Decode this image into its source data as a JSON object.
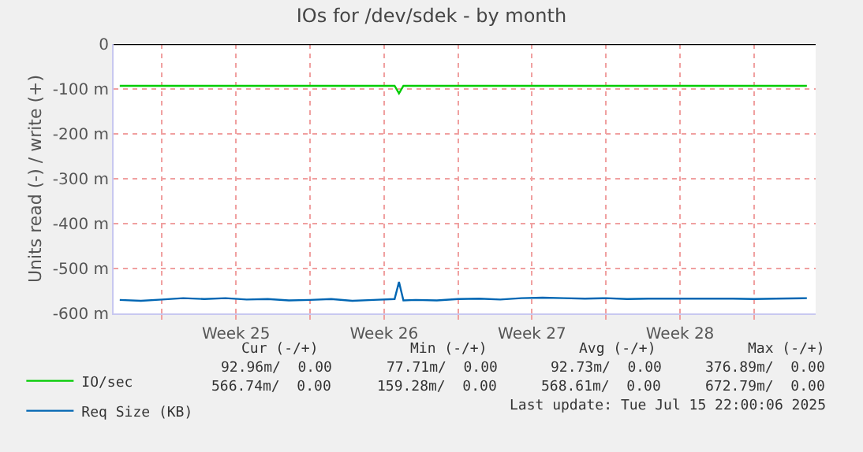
{
  "chart_data": {
    "type": "line",
    "title": "IOs for /dev/sdek - by month",
    "ylabel": "Units read (-) / write (+)",
    "x": [
      "2025-06-14",
      "2025-06-15",
      "2025-06-16",
      "2025-06-17",
      "2025-06-18",
      "2025-06-19",
      "2025-06-20",
      "2025-06-21",
      "2025-06-22",
      "2025-06-23",
      "2025-06-24",
      "2025-06-25",
      "2025-06-26",
      "2025-06-27T00:00",
      "2025-06-27T05:00",
      "2025-06-27T10:00",
      "2025-06-28",
      "2025-06-29",
      "2025-06-30",
      "2025-07-01",
      "2025-07-02",
      "2025-07-03",
      "2025-07-04",
      "2025-07-05",
      "2025-07-06",
      "2025-07-07",
      "2025-07-08",
      "2025-07-09",
      "2025-07-10",
      "2025-07-11",
      "2025-07-12",
      "2025-07-13",
      "2025-07-14",
      "2025-07-15",
      "2025-07-16T12:00"
    ],
    "series": [
      {
        "name": "IO/sec",
        "color": "#00cc00",
        "values": [
          -93,
          -93,
          -93,
          -93,
          -93,
          -93,
          -93,
          -93,
          -93,
          -93,
          -93,
          -93,
          -93,
          -93,
          -110,
          -93,
          -93,
          -93,
          -93,
          -93,
          -93,
          -93,
          -93,
          -93,
          -93,
          -93,
          -93,
          -93,
          -93,
          -93,
          -93,
          -93,
          -93,
          -93,
          -93
        ]
      },
      {
        "name": "Req Size (KB)",
        "color": "#0066b3",
        "values": [
          -570,
          -572,
          -569,
          -566,
          -568,
          -566,
          -569,
          -568,
          -571,
          -570,
          -568,
          -572,
          -570,
          -568,
          -530,
          -571,
          -570,
          -571,
          -568,
          -567,
          -569,
          -566,
          -565,
          -566,
          -567,
          -566,
          -568,
          -567,
          -567,
          -567,
          -567,
          -567,
          -568,
          -567,
          -566
        ]
      }
    ],
    "xlim": [
      "2025-06-13T17:00",
      "2025-07-16T22:00"
    ],
    "xticks": [
      {
        "value": "2025-06-16",
        "label": null
      },
      {
        "value": "2025-06-19T12:00",
        "label": "Week 25"
      },
      {
        "value": "2025-06-23",
        "label": null
      },
      {
        "value": "2025-06-26T12:00",
        "label": "Week 26"
      },
      {
        "value": "2025-06-30",
        "label": null
      },
      {
        "value": "2025-07-03T12:00",
        "label": "Week 27"
      },
      {
        "value": "2025-07-07",
        "label": null
      },
      {
        "value": "2025-07-10T12:00",
        "label": "Week 28"
      },
      {
        "value": "2025-07-14",
        "label": null
      }
    ],
    "ylim": [
      -600,
      0
    ],
    "yticks": [
      {
        "value": -600,
        "label": "-600 m"
      },
      {
        "value": -500,
        "label": "-500 m"
      },
      {
        "value": -400,
        "label": "-400 m"
      },
      {
        "value": -300,
        "label": "-300 m"
      },
      {
        "value": -200,
        "label": "-200 m"
      },
      {
        "value": -100,
        "label": "-100 m"
      },
      0
    ],
    "ref_lines": [
      {
        "axis": "y",
        "value": 0,
        "color": "#000000"
      }
    ],
    "grid": true,
    "legend": "bottom left",
    "line_style": "solid",
    "annotations": [
      "Cur (-/+)",
      "Min (-/+)",
      "Avg (-/+)",
      "Max (-/+)",
      "92.96m/  0.00",
      "77.71m/  0.00",
      "92.73m/  0.00",
      "376.89m/  0.00",
      "566.74m/  0.00",
      "159.28m/  0.00",
      "568.61m/  0.00",
      "672.79m/  0.00",
      "Last update: Tue Jul 15 22:00:06 2025"
    ]
  }
}
